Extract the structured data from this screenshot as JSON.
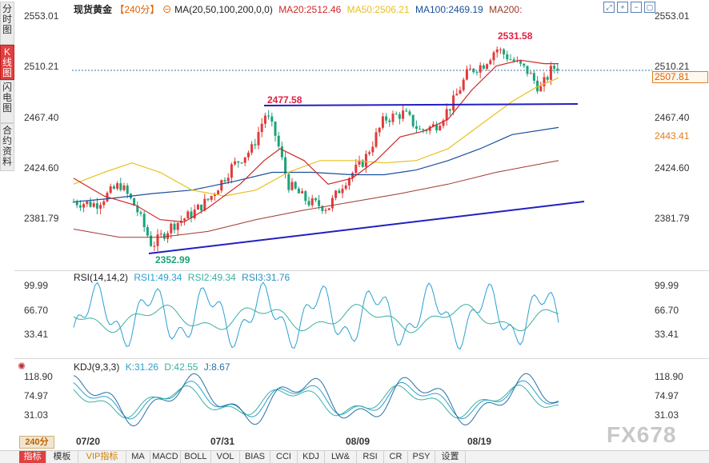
{
  "side_tabs": [
    {
      "label": "分时图",
      "active": false
    },
    {
      "label": "K线图",
      "active": true
    },
    {
      "label": "闪电图",
      "active": false
    },
    {
      "label": "合约资料",
      "active": false
    }
  ],
  "header": {
    "symbol": "现货黄金",
    "period": "【240分】",
    "ma_def": "MA(20,50,100,200,0,0)",
    "ma20": "MA20:2512.46",
    "ma50": "MA50:2506.21",
    "ma100": "MA100:2469.19",
    "ma200": "MA200:"
  },
  "toolbar_icons": [
    "expand-icon",
    "zoom-in-icon",
    "zoom-out-icon",
    "restore-icon",
    "settings-icon"
  ],
  "price_axis": [
    "2553.01",
    "2510.21",
    "2467.40",
    "2424.60",
    "2381.79"
  ],
  "current_price": "2507.81",
  "secondary_price": "2443.41",
  "annotations": {
    "high": "2531.58",
    "resistance": "2477.58",
    "low": "2352.99"
  },
  "rsi": {
    "label": "RSI(14,14,2)",
    "rsi1": "RSI1:49.34",
    "rsi2": "RSI2:49.34",
    "rsi3": "RSI3:31.76",
    "axis": [
      "99.99",
      "66.70",
      "33.41"
    ]
  },
  "kdj": {
    "label": "KDJ(9,3,3)",
    "k": "K:31.26",
    "d": "D:42.55",
    "j": "J:8.67",
    "axis": [
      "118.90",
      "74.97",
      "31.03"
    ]
  },
  "x_labels": [
    "07/20",
    "07/31",
    "08/09",
    "08/19"
  ],
  "period_selector": "240分",
  "bottom_tabs": [
    "指标",
    "模板",
    "VIP指标",
    "MA",
    "MACD",
    "BOLL",
    "VOL",
    "BIAS",
    "CCI",
    "KDJ",
    "LW&",
    "RSI",
    "CR",
    "PSY",
    "设置"
  ],
  "watermark": "FX678",
  "colors": {
    "up": "#e23a3a",
    "down": "#1aa37a",
    "ma20": "#d02828",
    "ma50": "#e8c020",
    "ma100": "#1a4f9c",
    "ma200": "#9c3a2a",
    "trend": "#2020c0"
  }
}
